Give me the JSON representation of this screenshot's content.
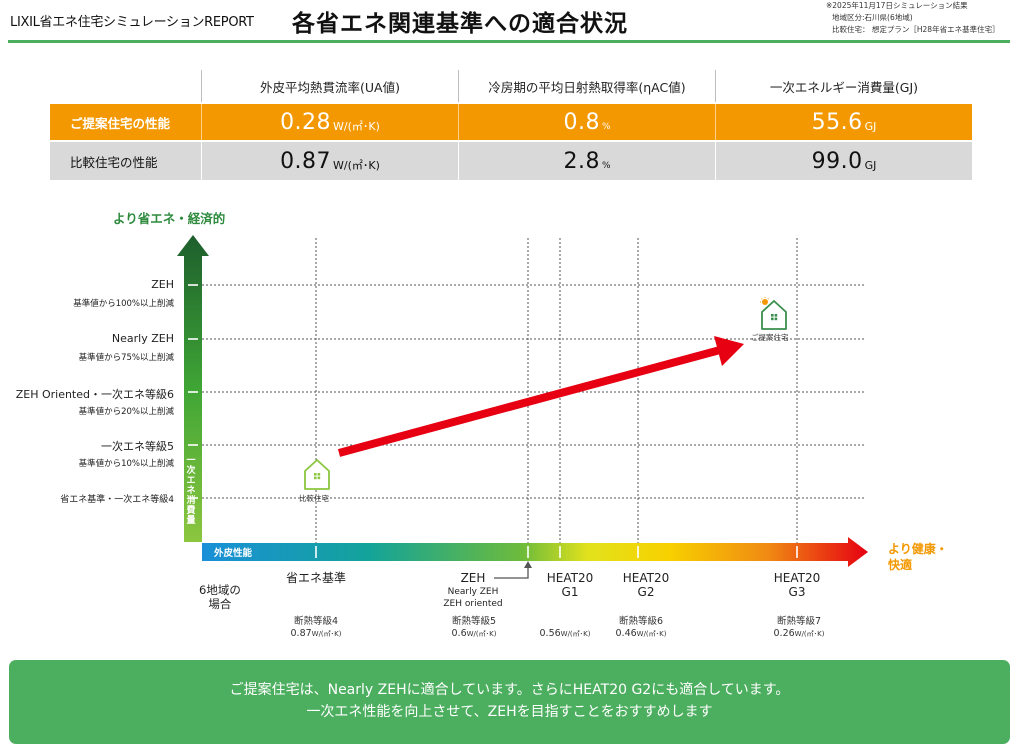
{
  "header": {
    "brand": "LIXIL省エネ住宅シミュレーションREPORT",
    "title": "各省エネ関連基準への適合状況",
    "meta": [
      "※2025年11月17日シミュレーション結果",
      "地域区分:石川県(6地域)",
      "比較住宅： 想定プラン［H28年省エネ基準住宅］"
    ]
  },
  "table": {
    "headers": [
      "",
      "外皮平均熱貫流率(UA値)",
      "冷房期の平均日射熱取得率(ηAC値)",
      "一次エネルギー消費量(GJ)"
    ],
    "rows": [
      {
        "label": "ご提案住宅の性能",
        "ua": {
          "value": "0.28",
          "unit": "W/(㎡･K)"
        },
        "eta": {
          "value": "0.8",
          "unit": "%"
        },
        "energy": {
          "value": "55.6",
          "unit": "GJ"
        }
      },
      {
        "label": "比較住宅の性能",
        "ua": {
          "value": "0.87",
          "unit": "W/(㎡･K)"
        },
        "eta": {
          "value": "2.8",
          "unit": "%"
        },
        "energy": {
          "value": "99.0",
          "unit": "GJ"
        }
      }
    ]
  },
  "chart": {
    "y_caption": "より省エネ・経済的",
    "y_axis_label": "一次エネ消費量",
    "x_axis_label": "外皮性能",
    "x_end_label": [
      "より健康・",
      "快適"
    ],
    "region_label": [
      "6地域の",
      "場合"
    ],
    "y_levels": [
      {
        "label": "ZEH",
        "sub": "基準値から100%以上削減"
      },
      {
        "label": "Nearly ZEH",
        "sub": "基準値から75%以上削減"
      },
      {
        "label": "ZEH Oriented・一次エネ等級6",
        "sub": "基準値から20%以上削減"
      },
      {
        "label": "一次エネ等級5",
        "sub": "基準値から10%以上削減"
      },
      {
        "label": "省エネ基準・一次エネ等級4",
        "sub": ""
      }
    ],
    "x_levels": [
      {
        "main": [
          "省エネ基準"
        ],
        "grade": "断熱等級4",
        "value": "0.87",
        "unit": "W/(㎡･K)"
      },
      {
        "main": [
          "ZEH"
        ],
        "sub": [
          "Nearly ZEH",
          "ZEH oriented"
        ],
        "grade": "断熱等級5",
        "value": "0.6",
        "unit": "W/(㎡･K)"
      },
      {
        "main": [
          "HEAT20",
          "G1"
        ],
        "grade": "",
        "value": "0.56",
        "unit": "W/(㎡･K)"
      },
      {
        "main": [
          "HEAT20",
          "G2"
        ],
        "grade": "断熱等級6",
        "value": "0.46",
        "unit": "W/(㎡･K)"
      },
      {
        "main": [
          "HEAT20",
          "G3"
        ],
        "grade": "断熱等級7",
        "value": "0.26",
        "unit": "W/(㎡･K)"
      }
    ],
    "houses": {
      "comparison": "比較住宅",
      "proposed": "ご提案住宅"
    },
    "colors": {
      "accent_orange": "#f39800",
      "green": "#4cae5f",
      "arrow_red": "#e60012"
    }
  },
  "banner": {
    "line1": "ご提案住宅は、Nearly ZEHに適合しています。さらにHEAT20 G2にも適合しています。",
    "line2": "一次エネ性能を向上させて、ZEHを目指すことをおすすめします"
  }
}
